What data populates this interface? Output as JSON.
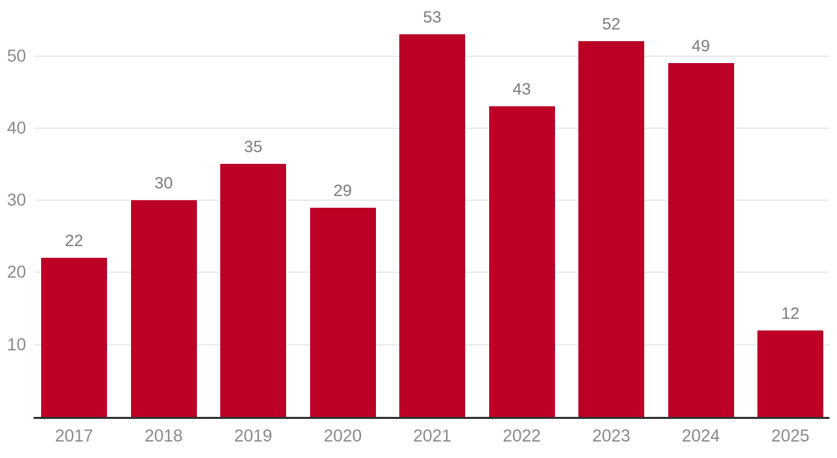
{
  "chart_data": {
    "type": "bar",
    "categories": [
      "2017",
      "2018",
      "2019",
      "2020",
      "2021",
      "2022",
      "2023",
      "2024",
      "2025"
    ],
    "values": [
      22,
      30,
      35,
      29,
      53,
      43,
      52,
      49,
      12
    ],
    "yticks": [
      10,
      20,
      30,
      40,
      50
    ],
    "ylim": [
      0,
      57.7
    ],
    "grid": true,
    "legend_position": "none",
    "value_labels_shown": true
  },
  "colors": {
    "bar": "#BD0026",
    "gridline": "#E9E9E9",
    "axis_line": "#333333",
    "axis_tick_label": "#8A8A8A",
    "value_label": "#7A7A7A",
    "background": "#FFFFFF"
  }
}
